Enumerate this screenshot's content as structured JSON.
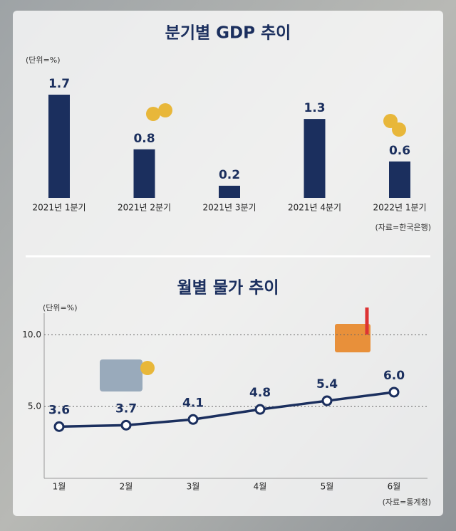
{
  "chart_data": [
    {
      "type": "bar",
      "title": "분기별 GDP 추이",
      "unit_label": "(단위=%)",
      "source": "(자료=한국은행)",
      "categories": [
        "2021년 1분기",
        "2021년 2분기",
        "2021년 3분기",
        "2021년 4분기",
        "2022년 1분기"
      ],
      "values": [
        1.7,
        0.8,
        0.2,
        1.3,
        0.6
      ],
      "color": "#1b2f5e"
    },
    {
      "type": "line",
      "title": "월별 물가 추이",
      "unit_label": "(단위=%)",
      "source": "(자료=통계청)",
      "categories": [
        "1월",
        "2월",
        "3월",
        "4월",
        "5월",
        "6월"
      ],
      "values": [
        3.6,
        3.7,
        4.1,
        4.8,
        5.4,
        6.0
      ],
      "value_labels": [
        "3.6",
        "3.7",
        "4.1",
        "4.8",
        "5.4",
        "6.0"
      ],
      "color": "#1b2f5e",
      "ylim": [
        0,
        11.5
      ],
      "yticks": [
        {
          "value": 5,
          "label": "5.0"
        },
        {
          "value": 10,
          "label": "10.0"
        }
      ],
      "grid": true
    }
  ]
}
